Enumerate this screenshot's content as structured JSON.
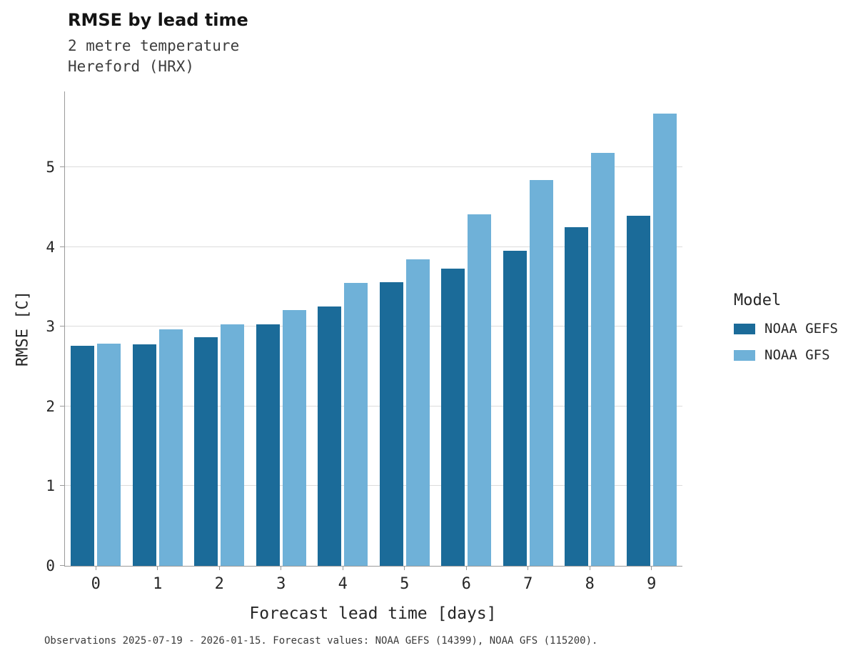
{
  "chart_data": {
    "type": "bar",
    "title": "RMSE by lead time",
    "subtitle": [
      "2 metre temperature",
      "Hereford (HRX)"
    ],
    "categories": [
      0,
      1,
      2,
      3,
      4,
      5,
      6,
      7,
      8,
      9
    ],
    "series": [
      {
        "name": "NOAA GEFS",
        "color": "#1b6b99",
        "values": [
          2.76,
          2.78,
          2.87,
          3.03,
          3.25,
          3.56,
          3.73,
          3.95,
          4.25,
          4.39
        ]
      },
      {
        "name": "NOAA GFS",
        "color": "#6fb1d8",
        "values": [
          2.79,
          2.97,
          3.03,
          3.21,
          3.55,
          3.84,
          4.41,
          4.84,
          5.18,
          5.67
        ]
      }
    ],
    "xlabel": "Forecast lead time [days]",
    "ylabel": "RMSE [C]",
    "yticks": [
      0,
      1,
      2,
      3,
      4,
      5
    ],
    "ylim": [
      0,
      5.95
    ],
    "grid": "horizontal",
    "legend_title": "Model",
    "legend_position": "right",
    "caption": "Observations 2025-07-19 - 2026-01-15. Forecast values: NOAA GEFS (14399), NOAA GFS (115200)."
  }
}
